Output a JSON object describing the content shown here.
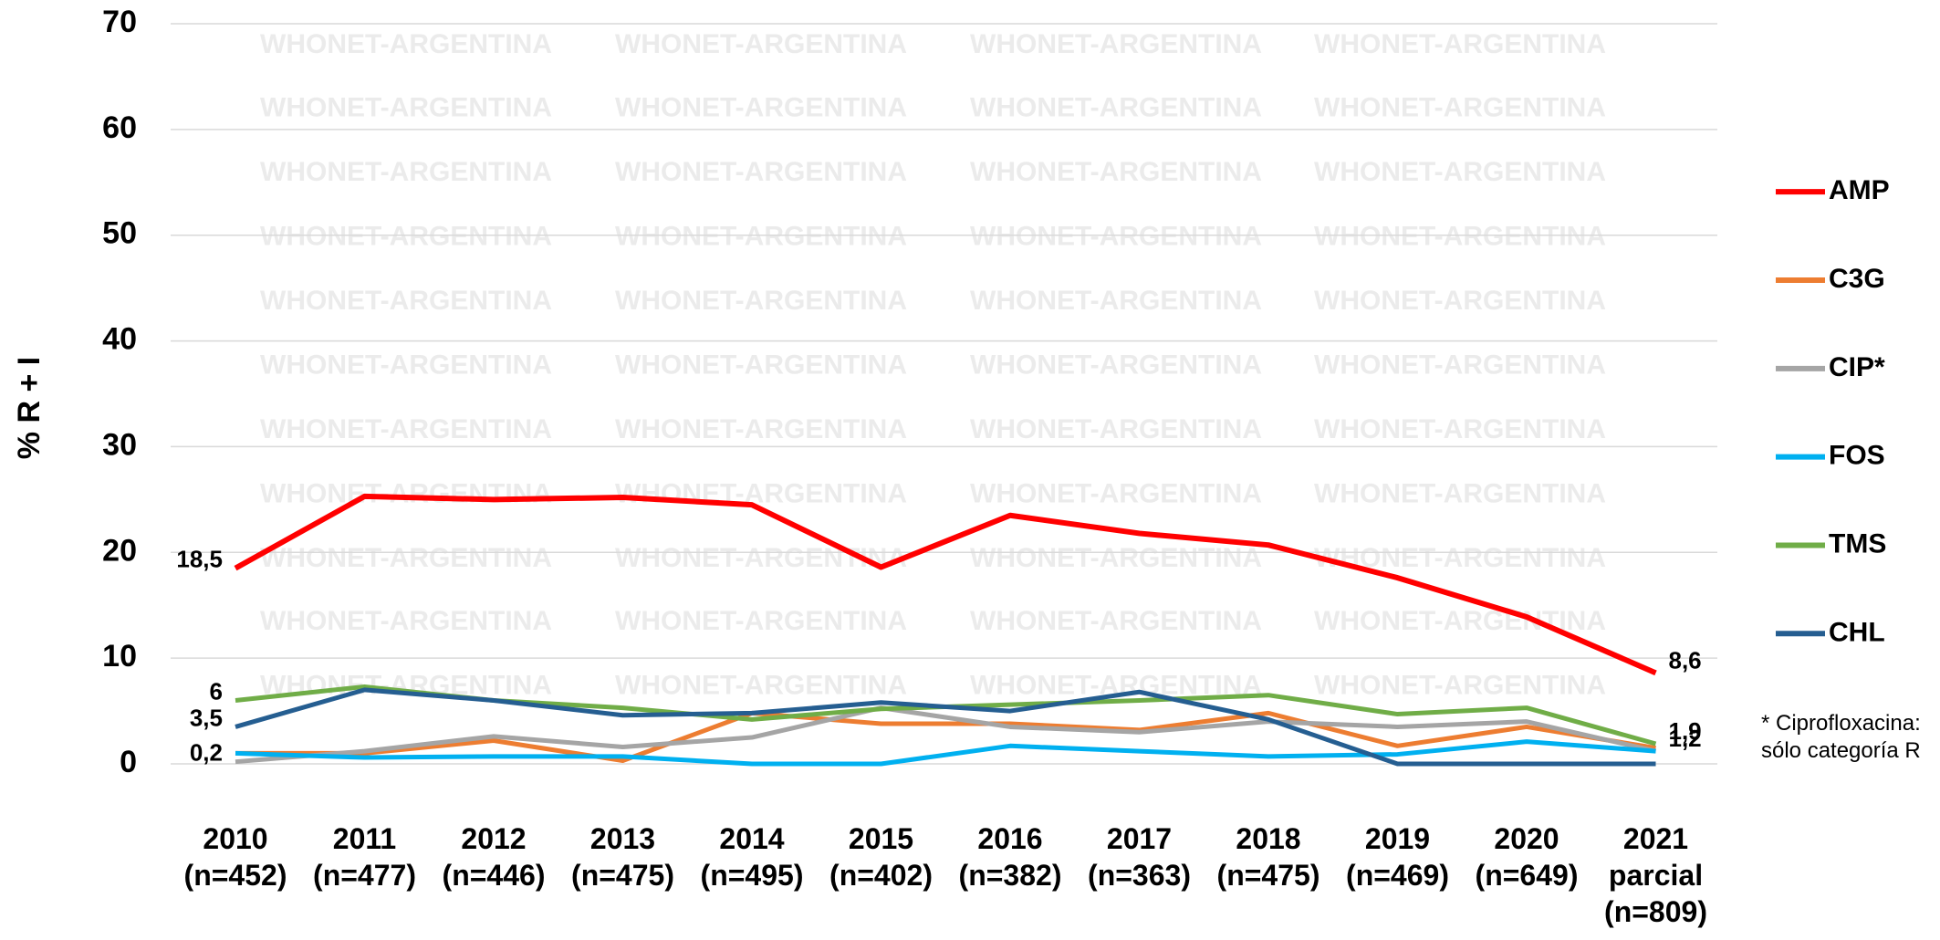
{
  "chart_data": {
    "type": "line",
    "y_label": "% R + I",
    "watermark": "WHONET-ARGENTINA",
    "footnote": "* Ciprofloxacina:\nsólo categoría R",
    "categories": [
      "2010\n(n=452)",
      "2011\n(n=477)",
      "2012\n(n=446)",
      "2013\n(n=475)",
      "2014\n(n=495)",
      "2015\n(n=402)",
      "2016\n(n=382)",
      "2017\n(n=363)",
      "2018\n(n=475)",
      "2019\n(n=469)",
      "2020\n(n=649)",
      "2021\nparcial\n(n=809)"
    ],
    "ylim": [
      0,
      70
    ],
    "yticks": [
      0,
      10,
      20,
      30,
      40,
      50,
      60,
      70
    ],
    "grid": true,
    "series": [
      {
        "name": "AMP",
        "color": "#ff0000",
        "values": [
          18.5,
          25.3,
          25.0,
          25.2,
          24.5,
          18.6,
          23.5,
          21.8,
          20.7,
          17.6,
          13.9,
          8.6
        ],
        "value_labels": [
          "18,5",
          null,
          null,
          null,
          null,
          null,
          null,
          null,
          null,
          null,
          null,
          "8,6"
        ]
      },
      {
        "name": "C3G",
        "color": "#ed7d31",
        "values": [
          1.0,
          1.0,
          2.2,
          0.3,
          4.8,
          3.8,
          3.8,
          3.2,
          4.8,
          1.7,
          3.5,
          1.5
        ]
      },
      {
        "name": "CIP*",
        "color": "#a5a5a5",
        "values": [
          0.2,
          1.2,
          2.6,
          1.6,
          2.5,
          5.3,
          3.5,
          3.0,
          4.0,
          3.5,
          4.0,
          1.2
        ],
        "value_labels": [
          "0,2",
          null,
          null,
          null,
          null,
          null,
          null,
          null,
          null,
          null,
          null,
          "1,2"
        ]
      },
      {
        "name": "FOS",
        "color": "#00b0f0",
        "values": [
          1.0,
          0.6,
          0.7,
          0.7,
          0.0,
          0.0,
          1.7,
          1.2,
          0.7,
          0.9,
          2.1,
          1.2
        ]
      },
      {
        "name": "TMS",
        "color": "#70ad47",
        "values": [
          6,
          7.3,
          6.0,
          5.3,
          4.2,
          5.2,
          5.6,
          6.0,
          6.5,
          4.7,
          5.3,
          1.9
        ],
        "value_labels": [
          "6",
          null,
          null,
          null,
          null,
          null,
          null,
          null,
          null,
          null,
          null,
          "1,9"
        ]
      },
      {
        "name": "CHL",
        "color": "#255e91",
        "values": [
          3.5,
          7.0,
          6.0,
          4.6,
          4.8,
          5.8,
          5.0,
          6.8,
          4.2,
          0,
          0,
          0
        ],
        "value_labels": [
          "3,5",
          null,
          null,
          null,
          null,
          null,
          null,
          null,
          null,
          null,
          null,
          null
        ]
      }
    ]
  }
}
